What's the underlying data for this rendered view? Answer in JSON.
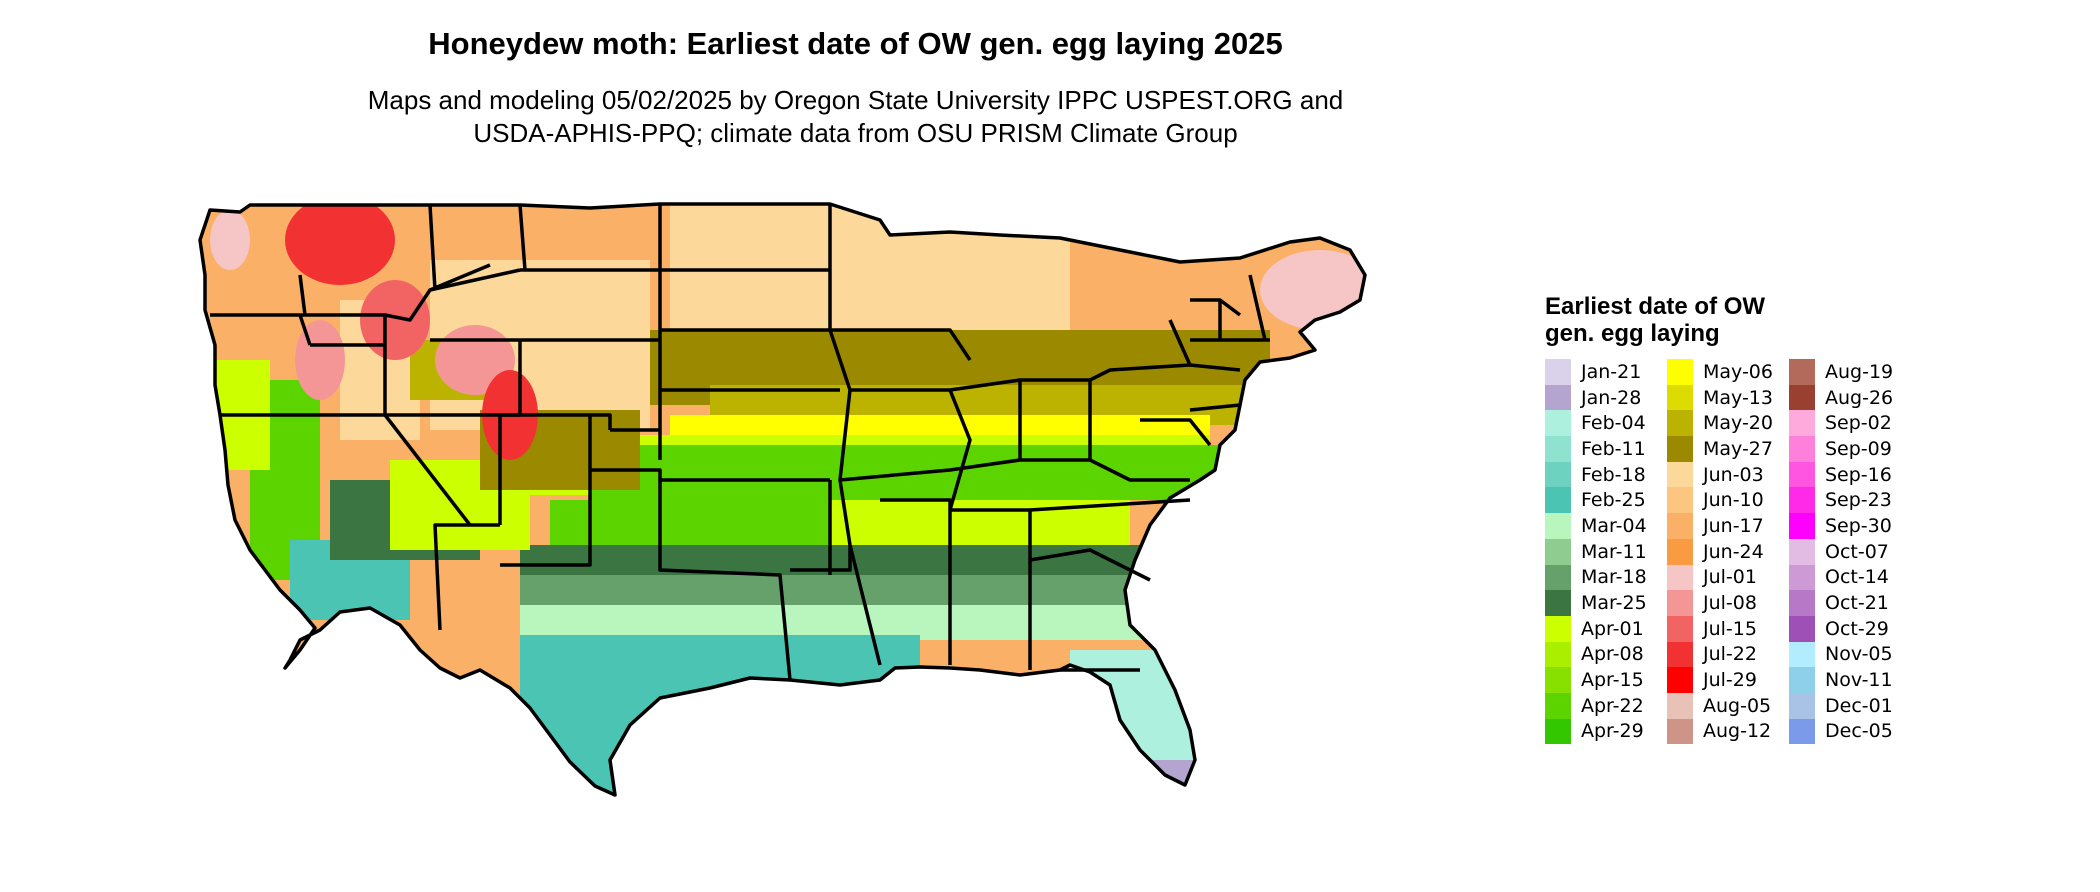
{
  "title": "Honeydew moth: Earliest date of OW gen. egg laying 2025",
  "subtitle_line1": "Maps and modeling 05/02/2025 by Oregon State University IPPC USPEST.ORG and",
  "subtitle_line2": "USDA-APHIS-PPQ; climate data from OSU PRISM Climate Group",
  "legend": {
    "title": "Earliest date of OW gen. egg laying",
    "columns": [
      [
        {
          "label": "Jan-21",
          "color": "#d9d2ea"
        },
        {
          "label": "Jan-28",
          "color": "#b3a5cf"
        },
        {
          "label": "Feb-04",
          "color": "#aef0de"
        },
        {
          "label": "Feb-11",
          "color": "#8ee2ce"
        },
        {
          "label": "Feb-18",
          "color": "#6dd3c0"
        },
        {
          "label": "Feb-25",
          "color": "#4cc4b4"
        },
        {
          "label": "Mar-04",
          "color": "#b8f6bd"
        },
        {
          "label": "Mar-11",
          "color": "#8fcc8f"
        },
        {
          "label": "Mar-18",
          "color": "#66a06b"
        },
        {
          "label": "Mar-25",
          "color": "#3b7542"
        },
        {
          "label": "Apr-01",
          "color": "#ccff00"
        },
        {
          "label": "Apr-08",
          "color": "#aaee00"
        },
        {
          "label": "Apr-15",
          "color": "#88e000"
        },
        {
          "label": "Apr-22",
          "color": "#5cd400"
        },
        {
          "label": "Apr-29",
          "color": "#33c700"
        }
      ],
      [
        {
          "label": "May-06",
          "color": "#ffff00"
        },
        {
          "label": "May-13",
          "color": "#dcdc00"
        },
        {
          "label": "May-20",
          "color": "#bcb300"
        },
        {
          "label": "May-27",
          "color": "#9b8a00"
        },
        {
          "label": "Jun-03",
          "color": "#fcd99a"
        },
        {
          "label": "Jun-10",
          "color": "#fcc680"
        },
        {
          "label": "Jun-17",
          "color": "#fbb068"
        },
        {
          "label": "Jun-24",
          "color": "#f99b40"
        },
        {
          "label": "Jul-01",
          "color": "#f6c6c6"
        },
        {
          "label": "Jul-08",
          "color": "#f49696"
        },
        {
          "label": "Jul-15",
          "color": "#f26464"
        },
        {
          "label": "Jul-22",
          "color": "#f23232"
        },
        {
          "label": "Jul-29",
          "color": "#ff0000"
        },
        {
          "label": "Aug-05",
          "color": "#e8c1b7"
        },
        {
          "label": "Aug-12",
          "color": "#cf9488"
        }
      ],
      [
        {
          "label": "Aug-19",
          "color": "#b36a5a"
        },
        {
          "label": "Aug-26",
          "color": "#9a4030"
        },
        {
          "label": "Sep-02",
          "color": "#ffaadd"
        },
        {
          "label": "Sep-09",
          "color": "#ff80da"
        },
        {
          "label": "Sep-16",
          "color": "#ff55e0"
        },
        {
          "label": "Sep-23",
          "color": "#ff2ae8"
        },
        {
          "label": "Sep-30",
          "color": "#ff00ff"
        },
        {
          "label": "Oct-07",
          "color": "#e3bce3"
        },
        {
          "label": "Oct-14",
          "color": "#cd9ad6"
        },
        {
          "label": "Oct-21",
          "color": "#b778c8"
        },
        {
          "label": "Oct-29",
          "color": "#9f50b7"
        },
        {
          "label": "Nov-05",
          "color": "#b2ecff"
        },
        {
          "label": "Nov-11",
          "color": "#8ed0ea"
        },
        {
          "label": "Dec-01",
          "color": "#a9c3e6"
        },
        {
          "label": "Dec-05",
          "color": "#7b9bea"
        }
      ]
    ]
  },
  "map": {
    "region": "Contiguous United States",
    "colors": {
      "north_tan": "#fbb068",
      "north_peach": "#fcd99a",
      "olive": "#9b8a00",
      "olive_light": "#bcb300",
      "yellow": "#ffff00",
      "lime": "#ccff00",
      "green": "#5cd400",
      "dark_green": "#3b7542",
      "mid_green": "#66a06b",
      "light_green": "#b8f6bd",
      "teal": "#4cc4b4",
      "mint": "#aef0de",
      "red": "#f23232",
      "pink": "#f6c6c6",
      "lavender": "#b3a5cf"
    }
  }
}
